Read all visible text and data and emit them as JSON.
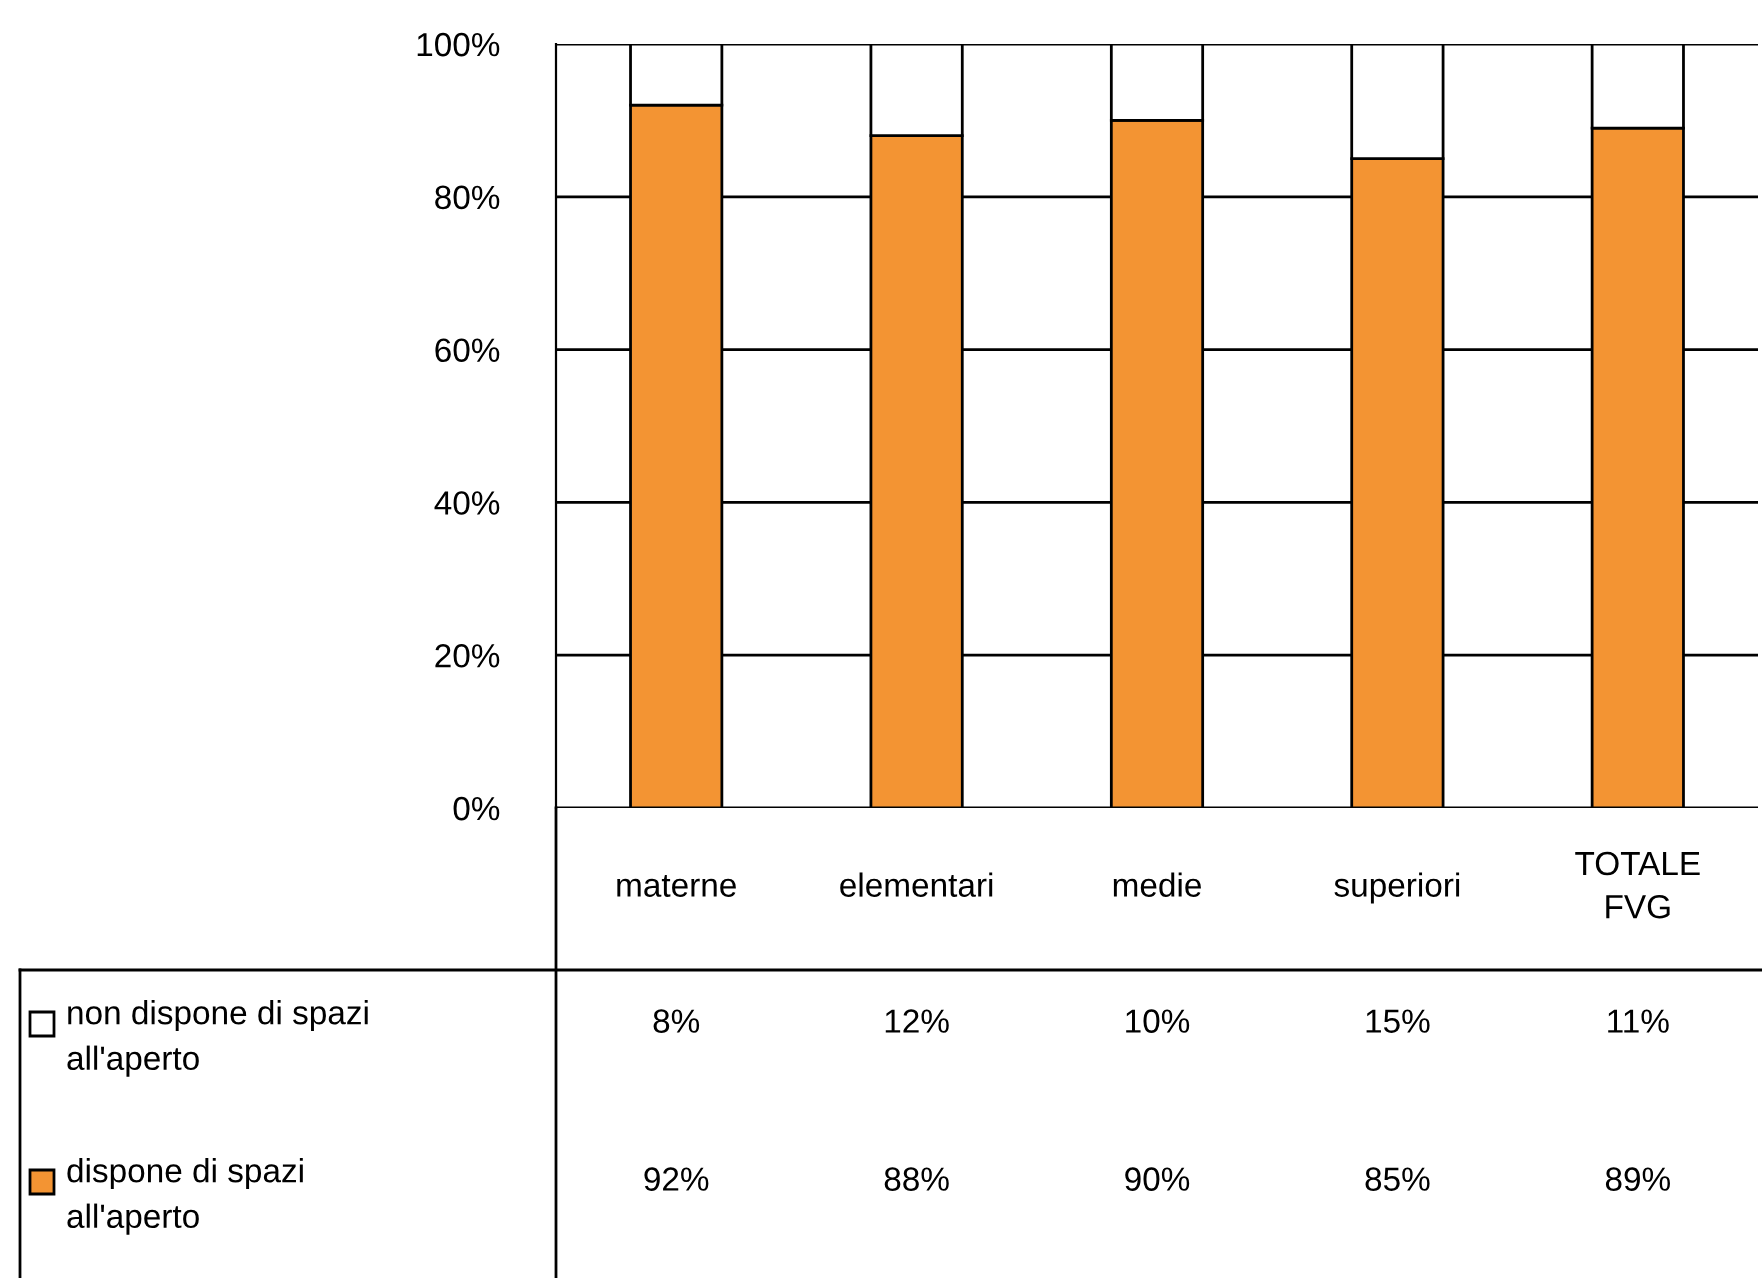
{
  "chart_data": {
    "type": "bar",
    "stacked": true,
    "categories": [
      "materne",
      "elementari",
      "medie",
      "superiori",
      "TOTALE\nFVG"
    ],
    "series": [
      {
        "name": "dispone di spazi\nall'aperto",
        "color": "#f39433",
        "values": [
          92,
          88,
          90,
          85,
          89
        ],
        "value_labels": [
          "92%",
          "88%",
          "90%",
          "85%",
          "89%"
        ]
      },
      {
        "name": "non dispone di spazi\nall'aperto",
        "color": "#ffffff",
        "values": [
          8,
          12,
          10,
          15,
          11
        ],
        "value_labels": [
          "8%",
          "12%",
          "10%",
          "15%",
          "11%"
        ]
      }
    ],
    "ylim": [
      0,
      100
    ],
    "yticks": [
      {
        "value": 0,
        "label": "0%"
      },
      {
        "value": 20,
        "label": "20%"
      },
      {
        "value": 40,
        "label": "40%"
      },
      {
        "value": 60,
        "label": "60%"
      },
      {
        "value": 80,
        "label": "80%"
      },
      {
        "value": 100,
        "label": "100%"
      }
    ],
    "grid": "y",
    "legend": "bottom left"
  }
}
